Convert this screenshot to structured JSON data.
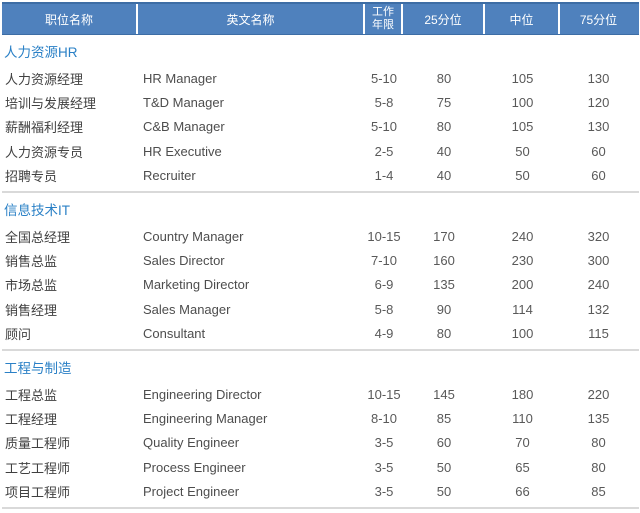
{
  "colors": {
    "header_bg": "#4f81bd",
    "header_border": "#3d6da5",
    "header_text": "#ffffff",
    "section_title": "#2a80c6",
    "divider": "#d9d9d9",
    "row_text": "#404040",
    "value_text": "#595959"
  },
  "table": {
    "columns": [
      "职位名称",
      "英文名称",
      "工作年限",
      "25分位",
      "中位",
      "75分位"
    ],
    "sections": [
      {
        "title": "人力资源HR",
        "rows": [
          [
            "人力资源经理",
            "HR Manager",
            "5-10",
            "80",
            "105",
            "130"
          ],
          [
            "培训与发展经理",
            "T&D Manager",
            "5-8",
            "75",
            "100",
            "120"
          ],
          [
            "薪酬福利经理",
            "C&B Manager",
            "5-10",
            "80",
            "105",
            "130"
          ],
          [
            "人力资源专员",
            "HR Executive",
            "2-5",
            "40",
            "50",
            "60"
          ],
          [
            "招聘专员",
            "Recruiter",
            "1-4",
            "40",
            "50",
            "60"
          ]
        ]
      },
      {
        "title": "信息技术IT",
        "rows": [
          [
            "全国总经理",
            "Country Manager",
            "10-15",
            "170",
            "240",
            "320"
          ],
          [
            "销售总监",
            "Sales Director",
            "7-10",
            "160",
            "230",
            "300"
          ],
          [
            "市场总监",
            "Marketing Director",
            "6-9",
            "135",
            "200",
            "240"
          ],
          [
            "销售经理",
            "Sales Manager",
            "5-8",
            "90",
            "114",
            "132"
          ],
          [
            "顾问",
            "Consultant",
            "4-9",
            "80",
            "100",
            "115"
          ]
        ]
      },
      {
        "title": "工程与制造",
        "rows": [
          [
            "工程总监",
            "Engineering Director",
            "10-15",
            "145",
            "180",
            "220"
          ],
          [
            "工程经理",
            "Engineering Manager",
            "8-10",
            "85",
            "110",
            "135"
          ],
          [
            "质量工程师",
            "Quality Engineer",
            "3-5",
            "60",
            "70",
            "80"
          ],
          [
            "工艺工程师",
            "Process Engineer",
            "3-5",
            "50",
            "65",
            "80"
          ],
          [
            "项目工程师",
            "Project Engineer",
            "3-5",
            "50",
            "66",
            "85"
          ]
        ]
      }
    ]
  }
}
